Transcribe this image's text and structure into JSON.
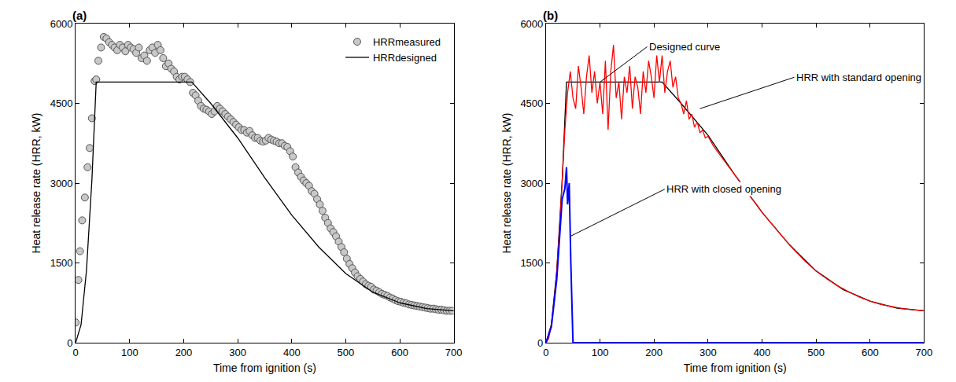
{
  "chart_data": [
    {
      "type": "line",
      "panel": "(a)",
      "x_label": "Time from ignition (s)",
      "y_label": "Heat release rate (HRR, kW)",
      "xlim": [
        0,
        700
      ],
      "xticks": [
        0,
        100,
        200,
        300,
        400,
        500,
        600,
        700
      ],
      "ylim": [
        0,
        6000
      ],
      "yticks": [
        0,
        1500,
        3000,
        4500,
        6000
      ],
      "grid": false,
      "legend": "top right",
      "series": [
        {
          "name": "HRRmeasured",
          "type": "scatter",
          "marker": "circle",
          "color": "#c8c8c8",
          "x": [
            0,
            5,
            8,
            12,
            17,
            22,
            26,
            30,
            35,
            38,
            42,
            47,
            52,
            57,
            62,
            67,
            72,
            77,
            82,
            87,
            92,
            97,
            102,
            107,
            112,
            117,
            122,
            127,
            132,
            137,
            142,
            147,
            152,
            157,
            162,
            167,
            172,
            177,
            182,
            187,
            192,
            197,
            202,
            207,
            212,
            217,
            222,
            227,
            232,
            237,
            242,
            247,
            252,
            257,
            262,
            267,
            272,
            277,
            282,
            287,
            292,
            297,
            302,
            307,
            312,
            317,
            322,
            327,
            332,
            337,
            342,
            347,
            352,
            357,
            362,
            367,
            372,
            377,
            382,
            387,
            392,
            397,
            402,
            407,
            412,
            417,
            422,
            427,
            432,
            437,
            442,
            447,
            452,
            457,
            462,
            467,
            472,
            477,
            482,
            487,
            492,
            497,
            502,
            507,
            512,
            517,
            522,
            527,
            532,
            537,
            542,
            547,
            552,
            557,
            562,
            567,
            572,
            577,
            582,
            587,
            592,
            597,
            602,
            607,
            612,
            617,
            622,
            627,
            632,
            637,
            642,
            647,
            652,
            657,
            662,
            667,
            672,
            677,
            682,
            687,
            692,
            697
          ],
          "values": [
            380,
            1180,
            1720,
            2300,
            2730,
            3300,
            3660,
            4220,
            4920,
            4950,
            5300,
            5550,
            5750,
            5720,
            5650,
            5600,
            5550,
            5500,
            5600,
            5550,
            5480,
            5600,
            5550,
            5520,
            5450,
            5550,
            5350,
            5400,
            5300,
            5500,
            5550,
            5450,
            5600,
            5500,
            5350,
            5200,
            5250,
            5150,
            5100,
            5000,
            4950,
            5000,
            5000,
            4950,
            4900,
            4700,
            4650,
            4550,
            4450,
            4400,
            4380,
            4350,
            4300,
            4350,
            4450,
            4400,
            4350,
            4300,
            4250,
            4200,
            4150,
            4100,
            4050,
            4000,
            4000,
            3950,
            3980,
            3900,
            3850,
            3850,
            3800,
            3780,
            3800,
            3850,
            3820,
            3800,
            3780,
            3750,
            3750,
            3700,
            3680,
            3600,
            3500,
            3300,
            3200,
            3120,
            3050,
            3000,
            2950,
            2850,
            2800,
            2700,
            2600,
            2480,
            2350,
            2250,
            2150,
            2080,
            2000,
            1900,
            1800,
            1700,
            1580,
            1480,
            1400,
            1320,
            1250,
            1200,
            1150,
            1100,
            1070,
            1050,
            1000,
            980,
            950,
            920,
            900,
            880,
            850,
            830,
            800,
            780,
            770,
            750,
            740,
            720,
            710,
            700,
            690,
            680,
            670,
            660,
            650,
            640,
            640,
            630,
            620,
            620,
            610,
            600,
            600,
            600
          ]
        },
        {
          "name": "HRRdesigned",
          "type": "line",
          "line_style": "solid",
          "color": "#000000",
          "x": [
            0,
            10,
            20,
            30,
            38,
            215,
            250,
            300,
            350,
            400,
            450,
            500,
            550,
            600,
            650,
            700
          ],
          "values": [
            0,
            340,
            1360,
            3050,
            4900,
            4900,
            4500,
            3850,
            3100,
            2400,
            1800,
            1300,
            950,
            750,
            640,
            600
          ]
        }
      ]
    },
    {
      "type": "line",
      "panel": "(b)",
      "x_label": "Time from ignition (s)",
      "y_label": "Heat release rate (HRR, kW)",
      "xlim": [
        0,
        700
      ],
      "xticks": [
        0,
        100,
        200,
        300,
        400,
        500,
        600,
        700
      ],
      "ylim": [
        0,
        6000
      ],
      "yticks": [
        0,
        1500,
        3000,
        4500,
        6000
      ],
      "grid": false,
      "series": [
        {
          "type": "line",
          "line_style": "solid",
          "color": "#000000",
          "x": [
            0,
            10,
            20,
            30,
            38,
            215,
            250,
            300,
            350,
            400,
            450,
            500,
            550,
            600,
            650,
            700
          ],
          "values": [
            0,
            340,
            1360,
            3050,
            4900,
            4900,
            4500,
            3900,
            3150,
            2450,
            1850,
            1350,
            1000,
            780,
            650,
            600
          ]
        },
        {
          "type": "line",
          "line_style": "solid",
          "color": "#ff0000",
          "x": [
            0,
            5,
            10,
            15,
            20,
            25,
            30,
            35,
            40,
            45,
            50,
            55,
            60,
            65,
            70,
            75,
            80,
            85,
            90,
            95,
            100,
            105,
            110,
            115,
            120,
            125,
            130,
            135,
            140,
            145,
            150,
            155,
            160,
            165,
            170,
            175,
            180,
            185,
            190,
            195,
            200,
            205,
            210,
            215,
            220,
            225,
            230,
            235,
            240,
            245,
            250,
            255,
            260,
            265,
            270,
            275,
            280,
            285,
            290,
            295,
            300,
            310,
            320,
            330,
            340,
            350,
            360,
            370,
            380,
            390,
            400,
            410,
            420,
            430,
            440,
            450,
            460,
            470,
            480,
            490,
            500,
            520,
            540,
            560,
            580,
            600,
            620,
            640,
            660,
            680,
            700
          ],
          "values": [
            0,
            80,
            340,
            770,
            1360,
            2120,
            3050,
            4000,
            4700,
            5100,
            4600,
            4400,
            5200,
            4800,
            4300,
            5000,
            5400,
            4700,
            5100,
            4500,
            4900,
            4300,
            5300,
            4000,
            5100,
            5600,
            4600,
            4900,
            4200,
            5000,
            4700,
            5200,
            4400,
            5000,
            4800,
            4300,
            5100,
            4700,
            5300,
            5000,
            4600,
            5400,
            4900,
            5400,
            4700,
            5100,
            5300,
            4800,
            5000,
            4600,
            4500,
            4300,
            4550,
            4200,
            4300,
            4050,
            4150,
            3950,
            4000,
            3850,
            3880,
            3700,
            3560,
            3420,
            3280,
            3150,
            3020,
            2880,
            2720,
            2600,
            2450,
            2330,
            2200,
            2090,
            1960,
            1850,
            1740,
            1630,
            1530,
            1440,
            1350,
            1200,
            1070,
            960,
            860,
            780,
            720,
            680,
            640,
            620,
            600
          ]
        },
        {
          "type": "line",
          "line_style": "solid",
          "color": "#0000ff",
          "x": [
            0,
            10,
            20,
            30,
            35,
            38,
            40,
            43,
            46,
            50,
            700
          ],
          "values": [
            0,
            300,
            1200,
            2700,
            2900,
            3300,
            2600,
            3000,
            1500,
            0,
            0
          ]
        }
      ],
      "annotations": [
        {
          "text": "Designed curve",
          "x": 100,
          "y": 4900
        },
        {
          "text": "HRR with standard opening",
          "x": 285,
          "y": 4400
        },
        {
          "text": "HRR with closed opening",
          "x": 45,
          "y": 2000
        }
      ]
    }
  ]
}
